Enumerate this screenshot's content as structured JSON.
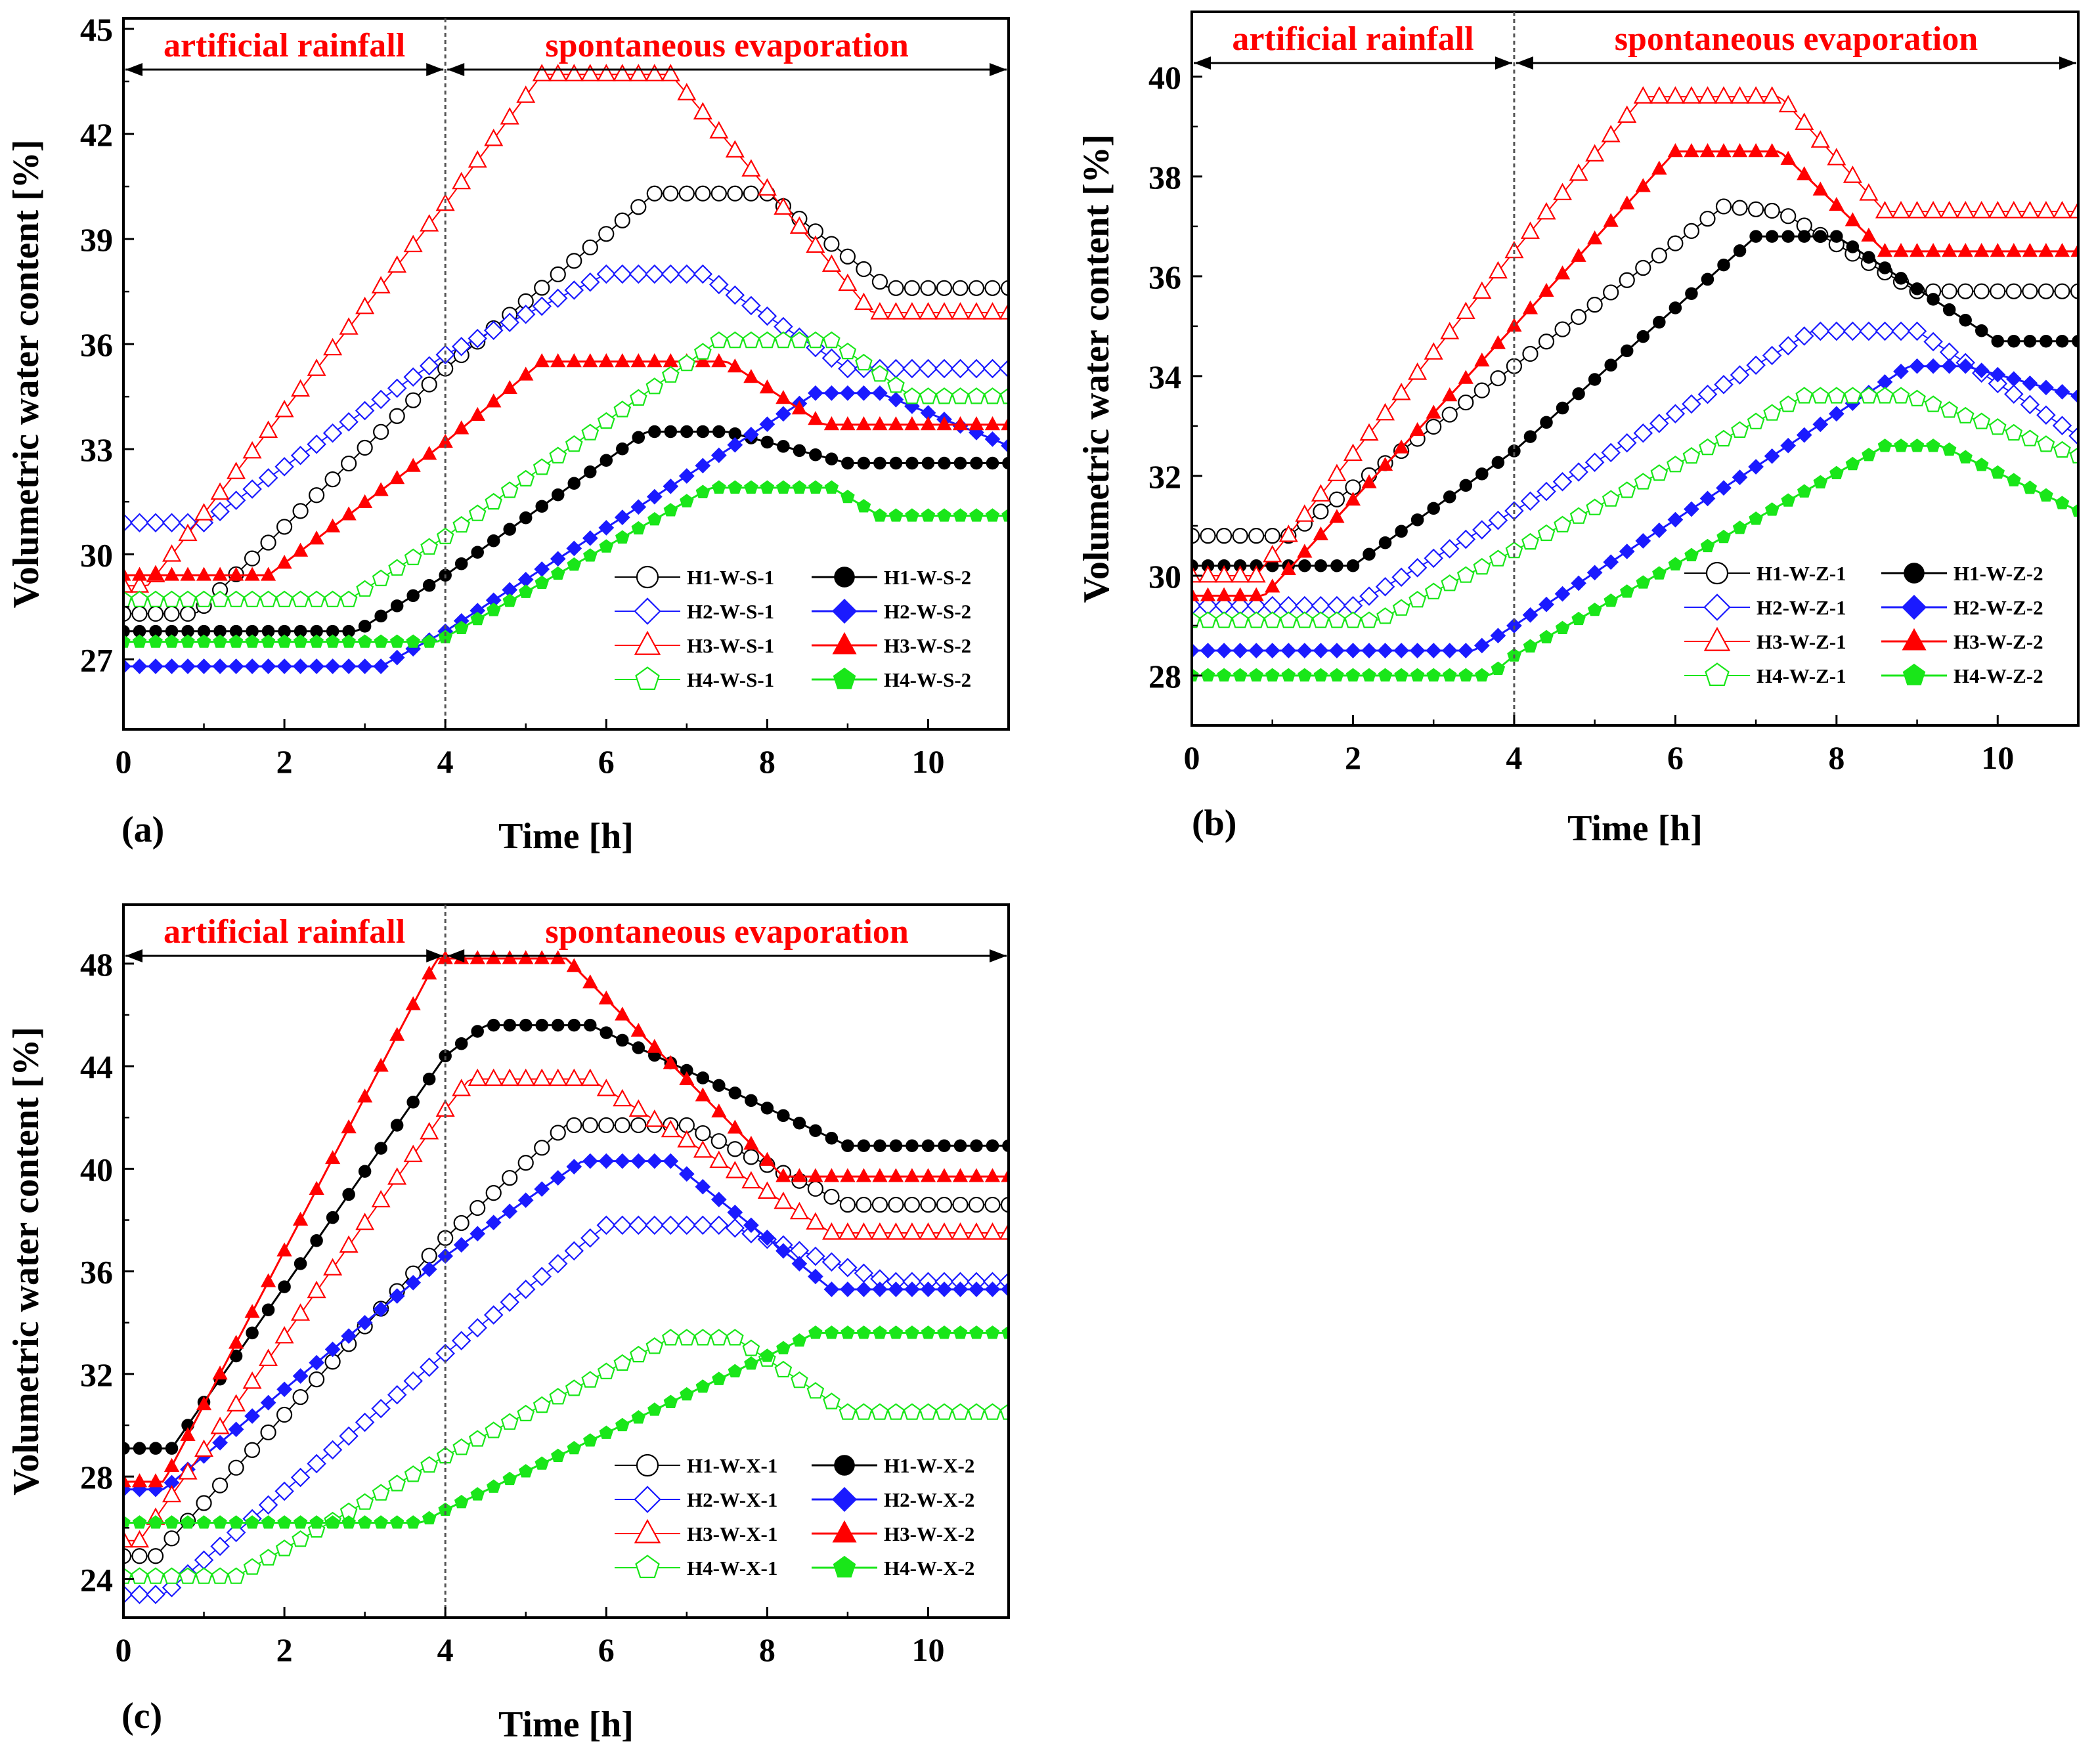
{
  "colors": {
    "H1": "#000000",
    "H2": "#1a1aff",
    "H3": "#ff0000",
    "H4": "#19e619",
    "phase_text": "#ff0000",
    "axis": "#000000"
  },
  "chart_data": [
    {
      "type": "line",
      "panel": "(a)",
      "xlabel": "Time [h]",
      "ylabel": "Volumetric water content [%]",
      "xlim": [
        0,
        11
      ],
      "ylim": [
        25,
        45.3
      ],
      "xticks": [
        0,
        2,
        4,
        6,
        8,
        10
      ],
      "yticks": [
        27,
        30,
        33,
        36,
        39,
        42,
        45
      ],
      "phases": [
        {
          "label": "artificial rainfall",
          "from": 0,
          "to": 4
        },
        {
          "label": "spontaneous evaporation",
          "from": 4,
          "to": 11
        }
      ],
      "divider_x": 4,
      "series": [
        {
          "name": "H1-W-S-1",
          "group": "H1",
          "marker": "circle",
          "filled": false,
          "points": [
            [
              0,
              28.3
            ],
            [
              0.9,
              28.3
            ],
            [
              4,
              35.3
            ],
            [
              6.6,
              40.3
            ],
            [
              8,
              40.3
            ],
            [
              9.5,
              37.6
            ],
            [
              11,
              37.6
            ]
          ]
        },
        {
          "name": "H1-W-S-2",
          "group": "H1",
          "marker": "circle",
          "filled": true,
          "points": [
            [
              0,
              27.8
            ],
            [
              2.9,
              27.8
            ],
            [
              4,
              29.4
            ],
            [
              6.5,
              33.5
            ],
            [
              7.5,
              33.5
            ],
            [
              9.0,
              32.6
            ],
            [
              11,
              32.6
            ]
          ]
        },
        {
          "name": "H2-W-S-1",
          "group": "H2",
          "marker": "diamond",
          "filled": false,
          "points": [
            [
              0,
              30.9
            ],
            [
              1.0,
              30.9
            ],
            [
              4,
              35.7
            ],
            [
              6,
              38.0
            ],
            [
              7.2,
              38.0
            ],
            [
              9.0,
              35.3
            ],
            [
              11,
              35.3
            ]
          ]
        },
        {
          "name": "H2-W-S-2",
          "group": "H2",
          "marker": "diamond",
          "filled": true,
          "points": [
            [
              0,
              26.8
            ],
            [
              3.2,
              26.8
            ],
            [
              4,
              27.8
            ],
            [
              8.6,
              34.6
            ],
            [
              9.4,
              34.6
            ],
            [
              11,
              33.1
            ]
          ]
        },
        {
          "name": "H3-W-S-1",
          "group": "H3",
          "marker": "triangle",
          "filled": false,
          "points": [
            [
              0,
              29.1
            ],
            [
              0.3,
              29.1
            ],
            [
              4,
              40.0
            ],
            [
              5.2,
              43.7
            ],
            [
              6.8,
              43.7
            ],
            [
              9.3,
              36.9
            ],
            [
              11,
              36.9
            ]
          ]
        },
        {
          "name": "H3-W-S-2",
          "group": "H3",
          "marker": "triangle",
          "filled": true,
          "points": [
            [
              0,
              29.4
            ],
            [
              1.8,
              29.4
            ],
            [
              4,
              33.2
            ],
            [
              5.2,
              35.5
            ],
            [
              7.5,
              35.5
            ],
            [
              8.7,
              33.7
            ],
            [
              11,
              33.7
            ]
          ]
        },
        {
          "name": "H4-W-S-1",
          "group": "H4",
          "marker": "pentagon",
          "filled": false,
          "points": [
            [
              0,
              28.7
            ],
            [
              2.8,
              28.7
            ],
            [
              4,
              30.5
            ],
            [
              7.4,
              36.1
            ],
            [
              8.8,
              36.1
            ],
            [
              9.8,
              34.5
            ],
            [
              11,
              34.5
            ]
          ]
        },
        {
          "name": "H4-W-S-2",
          "group": "H4",
          "marker": "pentagon",
          "filled": true,
          "points": [
            [
              0,
              27.5
            ],
            [
              3.9,
              27.5
            ],
            [
              7.3,
              31.9
            ],
            [
              8.8,
              31.9
            ],
            [
              9.4,
              31.1
            ],
            [
              11,
              31.1
            ]
          ]
        }
      ]
    },
    {
      "type": "line",
      "panel": "(b)",
      "xlabel": "Time [h]",
      "ylabel": "Volumetric water content [%]",
      "xlim": [
        0,
        11
      ],
      "ylim": [
        27,
        41.3
      ],
      "xticks": [
        0,
        2,
        4,
        6,
        8,
        10
      ],
      "yticks": [
        28,
        30,
        32,
        34,
        36,
        38,
        40
      ],
      "phases": [
        {
          "label": "artificial rainfall",
          "from": 0,
          "to": 4
        },
        {
          "label": "spontaneous evaporation",
          "from": 4,
          "to": 11
        }
      ],
      "divider_x": 4,
      "series": [
        {
          "name": "H1-W-Z-1",
          "group": "H1",
          "marker": "circle",
          "filled": false,
          "points": [
            [
              0,
              30.8
            ],
            [
              1.2,
              30.8
            ],
            [
              4,
              34.2
            ],
            [
              6.6,
              37.4
            ],
            [
              7.3,
              37.3
            ],
            [
              9,
              35.7
            ],
            [
              11,
              35.7
            ]
          ]
        },
        {
          "name": "H1-W-Z-2",
          "group": "H1",
          "marker": "circle",
          "filled": true,
          "points": [
            [
              0,
              30.2
            ],
            [
              2,
              30.2
            ],
            [
              4,
              32.5
            ],
            [
              7.0,
              36.8
            ],
            [
              8.0,
              36.8
            ],
            [
              10.0,
              34.7
            ],
            [
              11,
              34.7
            ]
          ]
        },
        {
          "name": "H2-W-Z-1",
          "group": "H2",
          "marker": "diamond",
          "filled": false,
          "points": [
            [
              0,
              29.4
            ],
            [
              2,
              29.4
            ],
            [
              4,
              31.3
            ],
            [
              7.7,
              34.9
            ],
            [
              9,
              34.9
            ],
            [
              11,
              32.8
            ]
          ]
        },
        {
          "name": "H2-W-Z-2",
          "group": "H2",
          "marker": "diamond",
          "filled": true,
          "points": [
            [
              0,
              28.5
            ],
            [
              3.5,
              28.5
            ],
            [
              4,
              29.0
            ],
            [
              8.9,
              34.2
            ],
            [
              9.6,
              34.2
            ],
            [
              11,
              33.6
            ]
          ]
        },
        {
          "name": "H3-W-Z-1",
          "group": "H3",
          "marker": "triangle",
          "filled": false,
          "points": [
            [
              0,
              30.0
            ],
            [
              0.8,
              30.0
            ],
            [
              4,
              36.5
            ],
            [
              5.6,
              39.6
            ],
            [
              7.3,
              39.6
            ],
            [
              8.6,
              37.3
            ],
            [
              11,
              37.3
            ]
          ]
        },
        {
          "name": "H3-W-Z-2",
          "group": "H3",
          "marker": "triangle",
          "filled": true,
          "points": [
            [
              0,
              29.6
            ],
            [
              0.9,
              29.6
            ],
            [
              4,
              35.0
            ],
            [
              6.0,
              38.5
            ],
            [
              7.3,
              38.5
            ],
            [
              8.6,
              36.5
            ],
            [
              11,
              36.5
            ]
          ]
        },
        {
          "name": "H4-W-Z-1",
          "group": "H4",
          "marker": "pentagon",
          "filled": false,
          "points": [
            [
              0,
              29.1
            ],
            [
              2.3,
              29.1
            ],
            [
              4,
              30.5
            ],
            [
              7.6,
              33.6
            ],
            [
              8.9,
              33.6
            ],
            [
              11,
              32.4
            ]
          ]
        },
        {
          "name": "H4-W-Z-2",
          "group": "H4",
          "marker": "pentagon",
          "filled": true,
          "points": [
            [
              0,
              28.0
            ],
            [
              3.7,
              28.0
            ],
            [
              4,
              28.4
            ],
            [
              8.6,
              32.6
            ],
            [
              9.3,
              32.6
            ],
            [
              11,
              31.3
            ]
          ]
        }
      ]
    },
    {
      "type": "line",
      "panel": "(c)",
      "xlabel": "Time [h]",
      "ylabel": "Volumetric water content [%]",
      "xlim": [
        0,
        11
      ],
      "ylim": [
        22.5,
        50.3
      ],
      "xticks": [
        0,
        2,
        4,
        6,
        8,
        10
      ],
      "yticks": [
        24,
        28,
        32,
        36,
        40,
        44,
        48
      ],
      "phases": [
        {
          "label": "artificial rainfall",
          "from": 0,
          "to": 4
        },
        {
          "label": "spontaneous evaporation",
          "from": 4,
          "to": 11
        }
      ],
      "divider_x": 4,
      "series": [
        {
          "name": "H1-W-X-1",
          "group": "H1",
          "marker": "circle",
          "filled": false,
          "points": [
            [
              0,
              24.9
            ],
            [
              0.4,
              24.9
            ],
            [
              4,
              37.3
            ],
            [
              5.5,
              41.7
            ],
            [
              7.0,
              41.7
            ],
            [
              9,
              38.6
            ],
            [
              11,
              38.6
            ]
          ]
        },
        {
          "name": "H1-W-X-2",
          "group": "H1",
          "marker": "circle",
          "filled": true,
          "points": [
            [
              0,
              29.1
            ],
            [
              0.6,
              29.1
            ],
            [
              4,
              44.4
            ],
            [
              4.5,
              45.6
            ],
            [
              5.8,
              45.6
            ],
            [
              9,
              40.9
            ],
            [
              11,
              40.9
            ]
          ]
        },
        {
          "name": "H2-W-X-1",
          "group": "H2",
          "marker": "diamond",
          "filled": false,
          "points": [
            [
              0,
              23.4
            ],
            [
              0.5,
              23.4
            ],
            [
              4,
              32.8
            ],
            [
              6,
              37.8
            ],
            [
              7.5,
              37.8
            ],
            [
              9.5,
              35.6
            ],
            [
              11,
              35.6
            ]
          ]
        },
        {
          "name": "H2-W-X-2",
          "group": "H2",
          "marker": "diamond",
          "filled": true,
          "points": [
            [
              0,
              27.5
            ],
            [
              0.5,
              27.5
            ],
            [
              4,
              36.6
            ],
            [
              5.7,
              40.3
            ],
            [
              6.8,
              40.3
            ],
            [
              8.8,
              35.3
            ],
            [
              11,
              35.3
            ]
          ]
        },
        {
          "name": "H3-W-X-1",
          "group": "H3",
          "marker": "triangle",
          "filled": false,
          "points": [
            [
              0,
              25.5
            ],
            [
              0.2,
              25.5
            ],
            [
              4,
              42.3
            ],
            [
              4.3,
              43.5
            ],
            [
              5.8,
              43.5
            ],
            [
              8.8,
              37.5
            ],
            [
              11,
              37.5
            ]
          ]
        },
        {
          "name": "H3-W-X-2",
          "group": "H3",
          "marker": "triangle",
          "filled": true,
          "points": [
            [
              0,
              27.8
            ],
            [
              0.5,
              27.8
            ],
            [
              3.9,
              48.2
            ],
            [
              5.5,
              48.2
            ],
            [
              8.2,
              39.7
            ],
            [
              11,
              39.7
            ]
          ]
        },
        {
          "name": "H4-W-X-1",
          "group": "H4",
          "marker": "pentagon",
          "filled": false,
          "points": [
            [
              0,
              24.1
            ],
            [
              1.4,
              24.1
            ],
            [
              4,
              28.8
            ],
            [
              6.8,
              33.4
            ],
            [
              7.6,
              33.4
            ],
            [
              9.0,
              30.5
            ],
            [
              11,
              30.5
            ]
          ]
        },
        {
          "name": "H4-W-X-2",
          "group": "H4",
          "marker": "pentagon",
          "filled": true,
          "points": [
            [
              0,
              26.2
            ],
            [
              3.7,
              26.2
            ],
            [
              4,
              26.7
            ],
            [
              8.6,
              33.6
            ],
            [
              11,
              33.6
            ]
          ]
        }
      ]
    }
  ]
}
